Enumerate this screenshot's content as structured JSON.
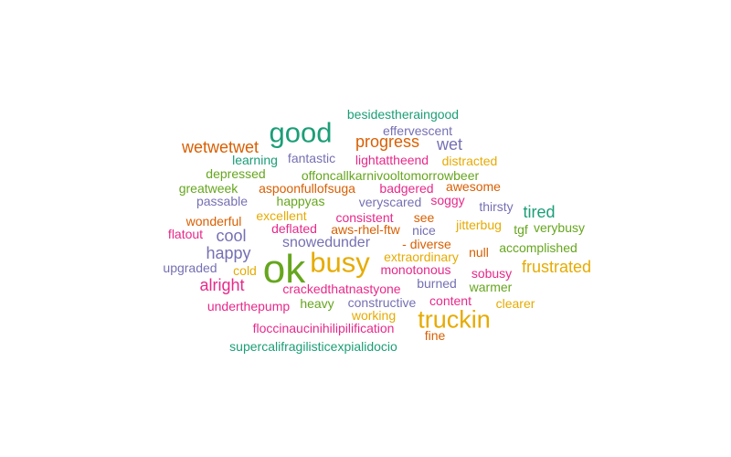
{
  "chart_data": {
    "type": "wordcloud",
    "palette": [
      "#1b9e77",
      "#d95f02",
      "#7570b3",
      "#e7298a",
      "#66a61e",
      "#e6ab02"
    ],
    "words": [
      {
        "text": "ok",
        "weight": 9,
        "color": "#66a61e"
      },
      {
        "text": "good",
        "weight": 7,
        "color": "#1b9e77"
      },
      {
        "text": "busy",
        "weight": 7,
        "color": "#e6ab02"
      },
      {
        "text": "truckin",
        "weight": 6,
        "color": "#e6ab02"
      },
      {
        "text": "cool",
        "weight": 4,
        "color": "#7570b3"
      },
      {
        "text": "wetwetwet",
        "weight": 4,
        "color": "#d95f02"
      },
      {
        "text": "progress",
        "weight": 4,
        "color": "#d95f02"
      },
      {
        "text": "wet",
        "weight": 4,
        "color": "#7570b3"
      },
      {
        "text": "happy",
        "weight": 4,
        "color": "#7570b3"
      },
      {
        "text": "alright",
        "weight": 4,
        "color": "#e7298a"
      },
      {
        "text": "tired",
        "weight": 4,
        "color": "#1b9e77"
      },
      {
        "text": "frustrated",
        "weight": 4,
        "color": "#e6ab02"
      },
      {
        "text": "snowedunder",
        "weight": 3,
        "color": "#7570b3"
      },
      {
        "text": "besidestheraingood",
        "weight": 2,
        "color": "#1b9e77"
      },
      {
        "text": "effervescent",
        "weight": 2,
        "color": "#7570b3"
      },
      {
        "text": "learning",
        "weight": 2,
        "color": "#1b9e77"
      },
      {
        "text": "fantastic",
        "weight": 2,
        "color": "#7570b3"
      },
      {
        "text": "lightattheend",
        "weight": 2,
        "color": "#e7298a"
      },
      {
        "text": "distracted",
        "weight": 2,
        "color": "#e6ab02"
      },
      {
        "text": "depressed",
        "weight": 2,
        "color": "#66a61e"
      },
      {
        "text": "offoncallkarnivooltomorrowbeer",
        "weight": 2,
        "color": "#66a61e"
      },
      {
        "text": "greatweek",
        "weight": 2,
        "color": "#66a61e"
      },
      {
        "text": "aspoonfullofsuga",
        "weight": 2,
        "color": "#d95f02"
      },
      {
        "text": "badgered",
        "weight": 2,
        "color": "#e7298a"
      },
      {
        "text": "awesome",
        "weight": 2,
        "color": "#d95f02"
      },
      {
        "text": "passable",
        "weight": 2,
        "color": "#7570b3"
      },
      {
        "text": "happyas",
        "weight": 2,
        "color": "#66a61e"
      },
      {
        "text": "veryscared",
        "weight": 2,
        "color": "#7570b3"
      },
      {
        "text": "soggy",
        "weight": 2,
        "color": "#e7298a"
      },
      {
        "text": "thirsty",
        "weight": 2,
        "color": "#7570b3"
      },
      {
        "text": "excellent",
        "weight": 2,
        "color": "#e6ab02"
      },
      {
        "text": "consistent",
        "weight": 2,
        "color": "#e7298a"
      },
      {
        "text": "see",
        "weight": 2,
        "color": "#d95f02"
      },
      {
        "text": "wonderful",
        "weight": 2,
        "color": "#d95f02"
      },
      {
        "text": "jitterbug",
        "weight": 2,
        "color": "#e6ab02"
      },
      {
        "text": "tgf",
        "weight": 2,
        "color": "#66a61e"
      },
      {
        "text": "verybusy",
        "weight": 2,
        "color": "#66a61e"
      },
      {
        "text": "flatout",
        "weight": 2,
        "color": "#e7298a"
      },
      {
        "text": "deflated",
        "weight": 2,
        "color": "#e7298a"
      },
      {
        "text": "aws-rhel-ftw",
        "weight": 2,
        "color": "#d95f02"
      },
      {
        "text": "nice",
        "weight": 2,
        "color": "#7570b3"
      },
      {
        "text": "- diverse",
        "weight": 2,
        "color": "#d95f02"
      },
      {
        "text": "null",
        "weight": 2,
        "color": "#d95f02"
      },
      {
        "text": "accomplished",
        "weight": 2,
        "color": "#66a61e"
      },
      {
        "text": "extraordinary",
        "weight": 2,
        "color": "#e6ab02"
      },
      {
        "text": "upgraded",
        "weight": 2,
        "color": "#7570b3"
      },
      {
        "text": "cold",
        "weight": 2,
        "color": "#e6ab02"
      },
      {
        "text": "monotonous",
        "weight": 2,
        "color": "#e7298a"
      },
      {
        "text": "sobusy",
        "weight": 2,
        "color": "#e7298a"
      },
      {
        "text": "burned",
        "weight": 2,
        "color": "#7570b3"
      },
      {
        "text": "crackedthatnastyone",
        "weight": 2,
        "color": "#e7298a"
      },
      {
        "text": "warmer",
        "weight": 2,
        "color": "#66a61e"
      },
      {
        "text": "heavy",
        "weight": 2,
        "color": "#66a61e"
      },
      {
        "text": "constructive",
        "weight": 2,
        "color": "#7570b3"
      },
      {
        "text": "content",
        "weight": 2,
        "color": "#e7298a"
      },
      {
        "text": "clearer",
        "weight": 2,
        "color": "#e6ab02"
      },
      {
        "text": "underthepump",
        "weight": 2,
        "color": "#e7298a"
      },
      {
        "text": "working",
        "weight": 2,
        "color": "#e6ab02"
      },
      {
        "text": "floccinaucinihilipilification",
        "weight": 2,
        "color": "#e7298a"
      },
      {
        "text": "fine",
        "weight": 2,
        "color": "#d95f02"
      },
      {
        "text": "supercalifragilisticexpialidocio",
        "weight": 2,
        "color": "#1b9e77"
      }
    ]
  }
}
